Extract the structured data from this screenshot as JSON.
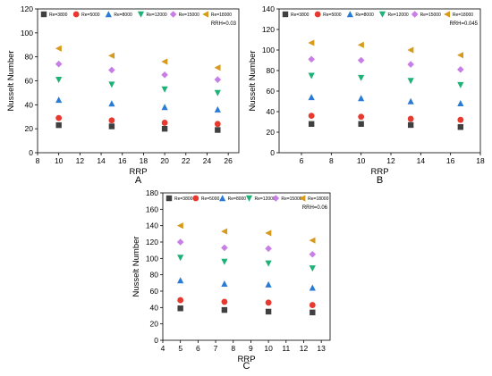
{
  "chart_data": [
    {
      "type": "scatter",
      "panel_label": "A",
      "annotation": "RRH=0.03",
      "xlabel": "RRP",
      "ylabel": "Nusselt Number",
      "xlim": [
        8,
        27
      ],
      "ylim": [
        0,
        120
      ],
      "xticks": [
        8,
        10,
        12,
        14,
        16,
        18,
        20,
        22,
        24,
        26
      ],
      "yticks": [
        0,
        20,
        40,
        60,
        80,
        100,
        120
      ],
      "x": [
        10,
        15,
        20,
        25
      ],
      "series": [
        {
          "name": "Re=3800",
          "color": "#404040",
          "marker": "square",
          "values": [
            23,
            22,
            20,
            19
          ]
        },
        {
          "name": "Re=5000",
          "color": "#e8392f",
          "marker": "circle",
          "values": [
            29,
            27,
            25,
            24
          ]
        },
        {
          "name": "Re=8000",
          "color": "#2a7bd4",
          "marker": "triangle-up",
          "values": [
            44,
            41,
            38,
            36
          ]
        },
        {
          "name": "Re=12000",
          "color": "#1fb277",
          "marker": "triangle-down",
          "values": [
            61,
            57,
            53,
            50
          ]
        },
        {
          "name": "Re=15000",
          "color": "#c77ee6",
          "marker": "diamond",
          "values": [
            74,
            69,
            65,
            61
          ]
        },
        {
          "name": "Re=18000",
          "color": "#d89a1c",
          "marker": "triangle-left",
          "values": [
            87,
            81,
            76,
            71
          ]
        }
      ]
    },
    {
      "type": "scatter",
      "panel_label": "B",
      "annotation": "RRH=0.045",
      "xlabel": "RRP",
      "ylabel": "Nusselt Number",
      "xlim": [
        4.5,
        18
      ],
      "ylim": [
        0,
        140
      ],
      "xticks": [
        6,
        8,
        10,
        12,
        14,
        16,
        18
      ],
      "yticks": [
        0,
        20,
        40,
        60,
        80,
        100,
        120,
        140
      ],
      "x": [
        6.67,
        10,
        13.33,
        16.67
      ],
      "series": [
        {
          "name": "Re=3800",
          "color": "#404040",
          "marker": "square",
          "values": [
            28,
            28,
            27,
            25
          ]
        },
        {
          "name": "Re=5000",
          "color": "#e8392f",
          "marker": "circle",
          "values": [
            36,
            35,
            33,
            32
          ]
        },
        {
          "name": "Re=8000",
          "color": "#2a7bd4",
          "marker": "triangle-up",
          "values": [
            54,
            53,
            50,
            48
          ]
        },
        {
          "name": "Re=12000",
          "color": "#1fb277",
          "marker": "triangle-down",
          "values": [
            75,
            73,
            70,
            66
          ]
        },
        {
          "name": "Re=15000",
          "color": "#c77ee6",
          "marker": "diamond",
          "values": [
            91,
            90,
            86,
            81
          ]
        },
        {
          "name": "Re=18000",
          "color": "#d89a1c",
          "marker": "triangle-left",
          "values": [
            107,
            105,
            100,
            95
          ]
        }
      ]
    },
    {
      "type": "scatter",
      "panel_label": "C",
      "annotation": "RRH=0.06",
      "xlabel": "RRP",
      "ylabel": "Nusselt Number",
      "xlim": [
        4,
        13.5
      ],
      "ylim": [
        0,
        180
      ],
      "xticks": [
        4,
        5,
        6,
        7,
        8,
        9,
        10,
        11,
        12,
        13
      ],
      "yticks": [
        0,
        20,
        40,
        60,
        80,
        100,
        120,
        140,
        160,
        180
      ],
      "x": [
        5,
        7.5,
        10,
        12.5
      ],
      "series": [
        {
          "name": "Re=3800",
          "color": "#404040",
          "marker": "square",
          "values": [
            39,
            37,
            35,
            34
          ]
        },
        {
          "name": "Re=5000",
          "color": "#e8392f",
          "marker": "circle",
          "values": [
            49,
            47,
            46,
            43
          ]
        },
        {
          "name": "Re=8000",
          "color": "#2a7bd4",
          "marker": "triangle-up",
          "values": [
            73,
            69,
            68,
            64
          ]
        },
        {
          "name": "Re=12000",
          "color": "#1fb277",
          "marker": "triangle-down",
          "values": [
            101,
            96,
            94,
            88
          ]
        },
        {
          "name": "Re=15000",
          "color": "#c77ee6",
          "marker": "diamond",
          "values": [
            120,
            113,
            112,
            105
          ]
        },
        {
          "name": "Re=18000",
          "color": "#d89a1c",
          "marker": "triangle-left",
          "values": [
            140,
            133,
            131,
            122
          ]
        }
      ]
    }
  ]
}
